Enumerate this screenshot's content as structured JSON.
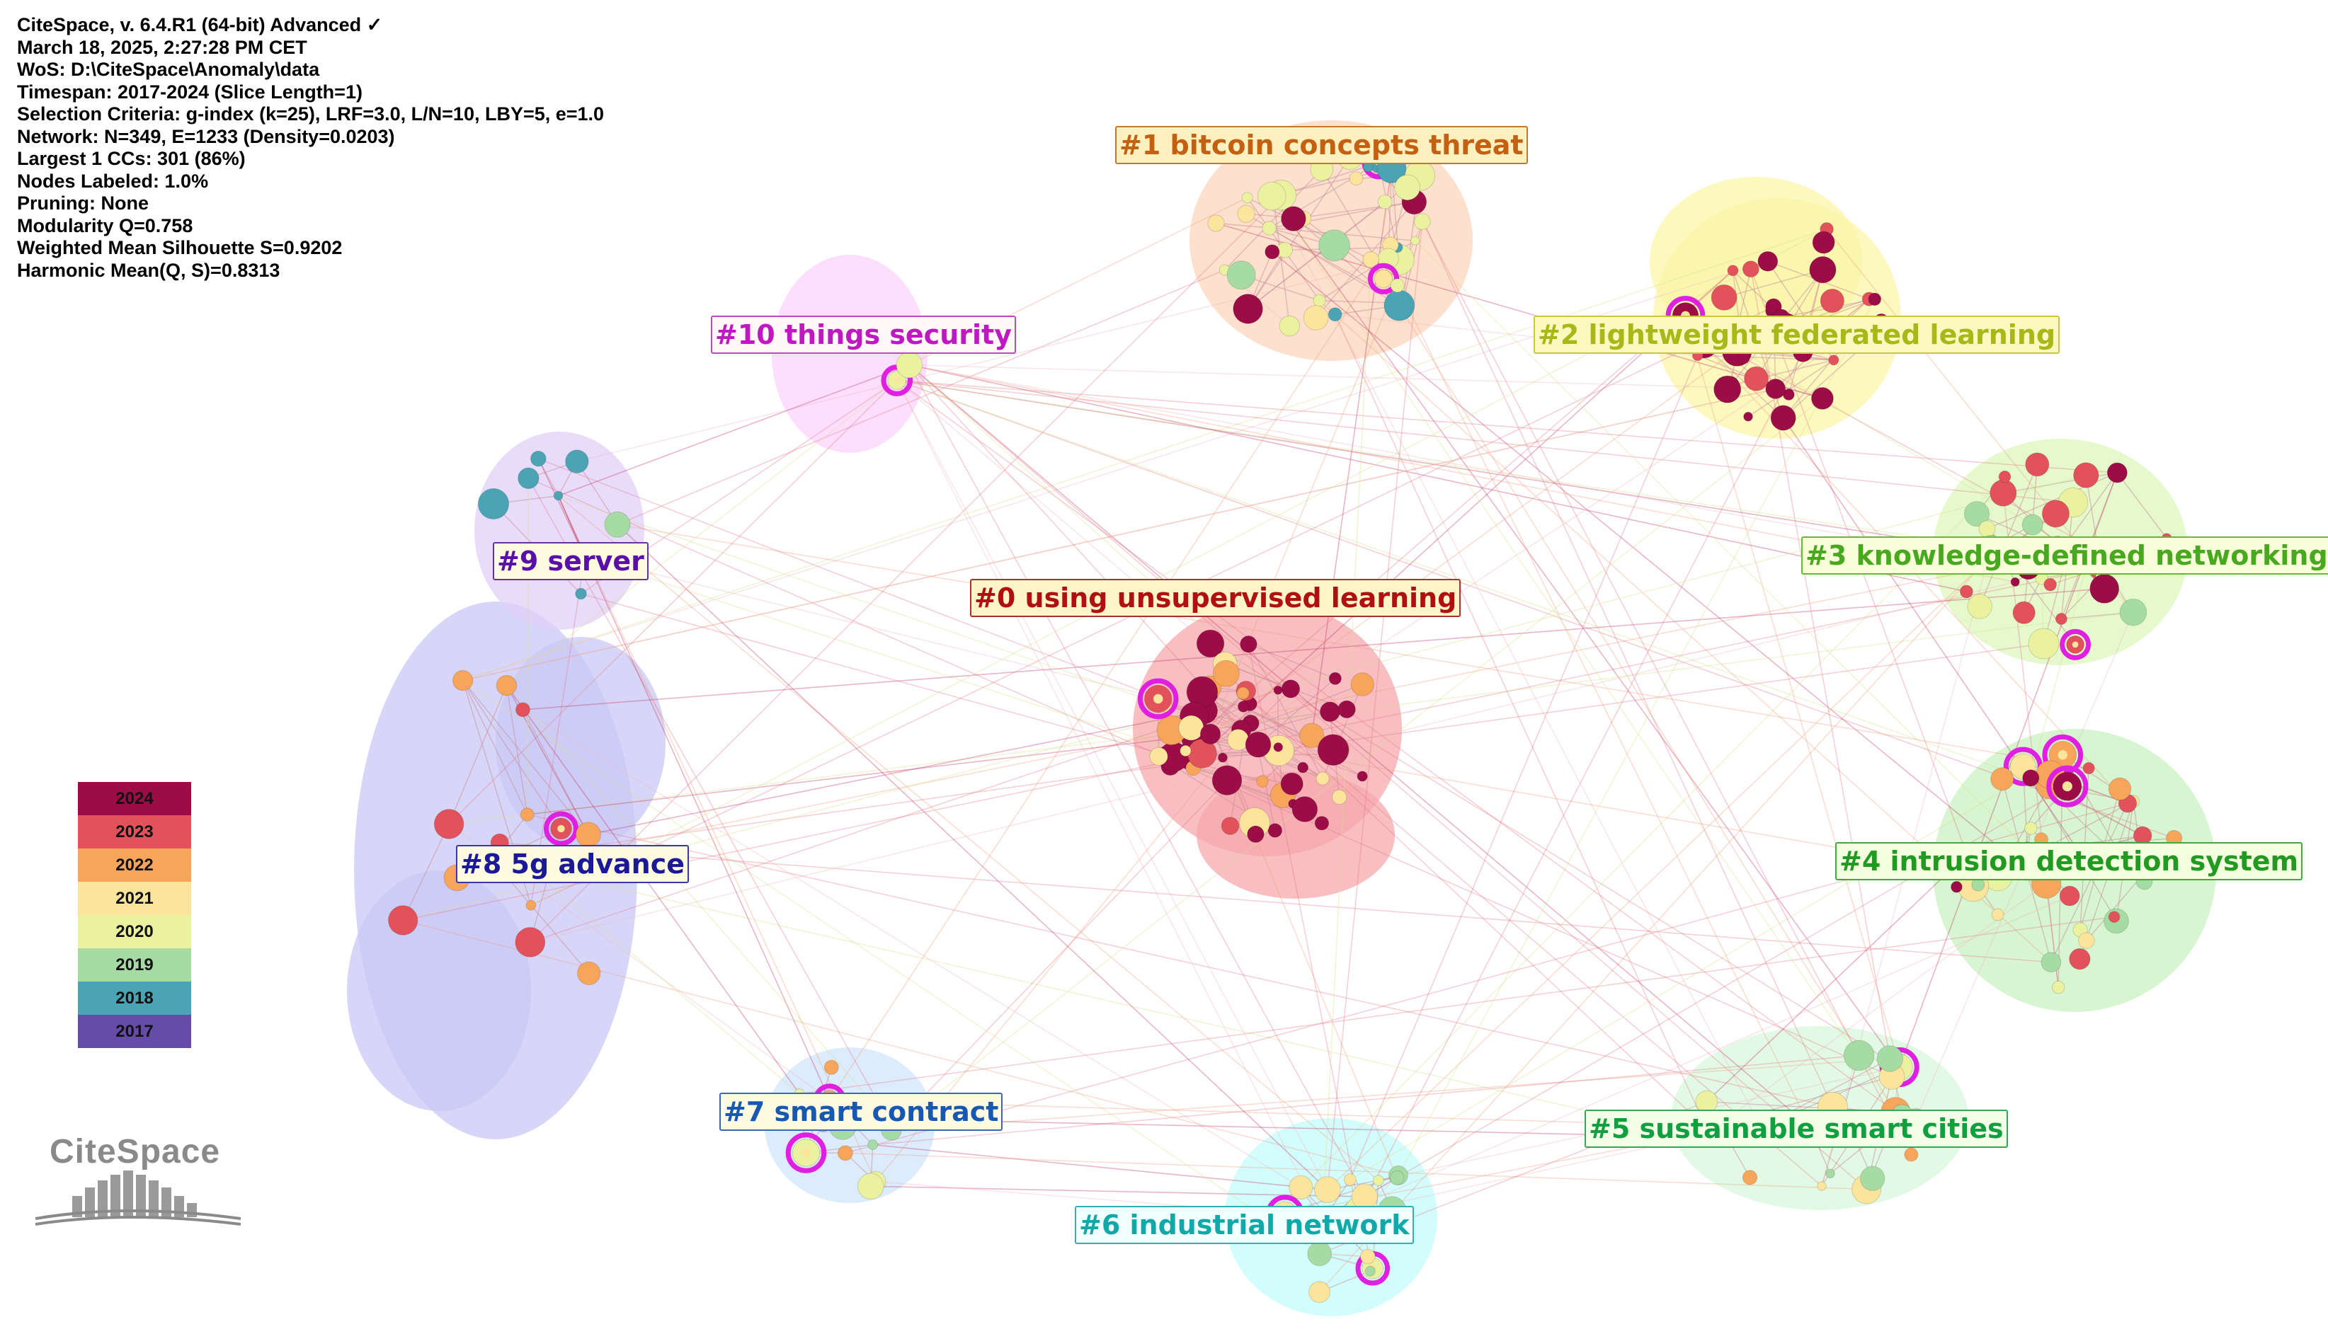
{
  "header_lines": [
    "CiteSpace, v. 6.4.R1 (64-bit) Advanced ✓",
    "March 18, 2025, 2:27:28 PM CET",
    "WoS: D:\\CiteSpace\\Anomaly\\data",
    "Timespan: 2017-2024 (Slice Length=1)",
    "Selection Criteria: g-index (k=25), LRF=3.0, L/N=10, LBY=5, e=1.0",
    "Network: N=349, E=1233 (Density=0.0203)",
    "Largest 1 CCs: 301 (86%)",
    "Nodes Labeled: 1.0%",
    "Pruning: None",
    "Modularity Q=0.758",
    "Weighted Mean Silhouette S=0.9202",
    "Harmonic Mean(Q, S)=0.8313"
  ],
  "clusters": [
    {
      "id": "c0",
      "label": "#0 using unsupervised learning",
      "color": "#b01010",
      "bg": "#fff5c8",
      "border": "#a83232"
    },
    {
      "id": "c1",
      "label": "#1 bitcoin concepts threat",
      "color": "#c46012",
      "bg": "#fff0c0",
      "border": "#c4782c"
    },
    {
      "id": "c2",
      "label": "#2 lightweight federated learning",
      "color": "#a8b818",
      "bg": "#fdf8c0",
      "border": "#c8c840"
    },
    {
      "id": "c3",
      "label": "#3 knowledge-defined networking",
      "color": "#48a820",
      "bg": "#f8ffd8",
      "border": "#68b838"
    },
    {
      "id": "c4",
      "label": "#4 intrusion detection system",
      "color": "#209a20",
      "bg": "#f4ffe0",
      "border": "#40a840"
    },
    {
      "id": "c5",
      "label": "#5 sustainable smart cities",
      "color": "#10a040",
      "bg": "#f4ffe8",
      "border": "#30a858"
    },
    {
      "id": "c6",
      "label": "#6 industrial network",
      "color": "#10a8a8",
      "bg": "#f2ffff",
      "border": "#30b0b0"
    },
    {
      "id": "c7",
      "label": "#7 smart contract",
      "color": "#1858b0",
      "bg": "#fffbe0",
      "border": "#3868b8"
    },
    {
      "id": "c8",
      "label": "#8 5g advance",
      "color": "#1a1a98",
      "bg": "#fffbe0",
      "border": "#3838a8"
    },
    {
      "id": "c9",
      "label": "#9 server",
      "color": "#5a10a8",
      "bg": "#fffbe0",
      "border": "#6830a8"
    },
    {
      "id": "c10",
      "label": "#10 things security",
      "color": "#c018c0",
      "bg": "#fff8f8",
      "border": "#c048c0"
    }
  ],
  "legend": {
    "years": [
      {
        "year": "2024",
        "color": "#9c0c46"
      },
      {
        "year": "2023",
        "color": "#e2525a"
      },
      {
        "year": "2022",
        "color": "#f8a55c"
      },
      {
        "year": "2021",
        "color": "#fbe49c"
      },
      {
        "year": "2020",
        "color": "#eaf2a0"
      },
      {
        "year": "2019",
        "color": "#a6dca4"
      },
      {
        "year": "2018",
        "color": "#4aa4b4"
      },
      {
        "year": "2017",
        "color": "#664ca8"
      }
    ]
  },
  "logo": {
    "text": "CiteSpace"
  }
}
